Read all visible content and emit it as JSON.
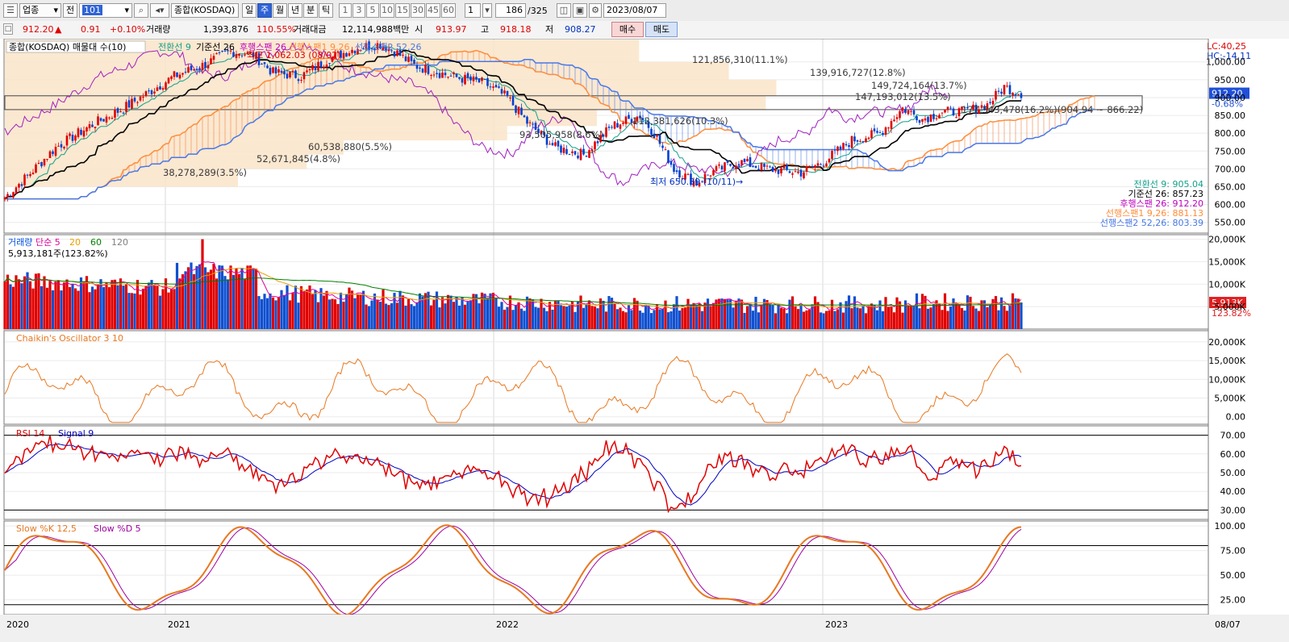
{
  "toolbar": {
    "market": "업종",
    "prev": "전",
    "code": "101",
    "name": "종합(KOSDAQ)",
    "periods": [
      "일",
      "주",
      "월",
      "년",
      "분",
      "틱"
    ],
    "selected_period": "주",
    "intervals": [
      "1",
      "3",
      "5",
      "10",
      "15",
      "30",
      "45",
      "60"
    ],
    "multiplier": "1",
    "count": "186",
    "count_total": "/325",
    "date": "2023/08/07"
  },
  "quote": {
    "price": "912.20",
    "arrow": "▲",
    "change": "0.91",
    "pct": "+0.10%",
    "vol_label": "거래량",
    "volume": "1,393,876",
    "vol_ratio": "110.55%",
    "amt_label": "거래대금",
    "amount": "12,114,988백만",
    "open_label": "시",
    "open": "913.97",
    "high_label": "고",
    "high": "918.18",
    "low_label": "저",
    "low": "908.27",
    "buy": "매수",
    "sell": "매도"
  },
  "main_panel": {
    "title": "종합(KOSDAQ) 매물대 수(10)",
    "legend": [
      {
        "label": "전환선 9",
        "color": "#13a08a"
      },
      {
        "label": "기준선 26",
        "color": "#000000"
      },
      {
        "label": "후행스팬 26",
        "color": "#c000c0"
      },
      {
        "label": "선행스팬1 9,26",
        "color": "#ff8c3a"
      },
      {
        "label": "선행스팬2 52,26",
        "color": "#4878e8"
      }
    ],
    "lc": "LC:40,25",
    "hc": "HC:-14,11",
    "price_tag": "912.20",
    "pct_tag": "-0.68%",
    "high_marker": "최고 1,062.03 (08/02)",
    "low_marker": "최저 650.39 (10/11)",
    "y_ticks": [
      "1,000.00",
      "950.00",
      "900.00",
      "850.00",
      "800.00",
      "750.00",
      "700.00",
      "650.00",
      "600.00",
      "550.00"
    ],
    "volume_profile": [
      "121,856,310(11.1%)",
      "139,916,727(12.8%)",
      "149,724,164(13.7%)",
      "147,193,012(13.5%)",
      "177,343,478(16.2%)(904.94 ~ 866.22)",
      "112,381,626(10.3%)",
      "93,505,958(8.6%)",
      "60,538,880(5.5%)",
      "52,671,845(4.8%)",
      "38,278,289(3.5%)"
    ],
    "values": [
      {
        "label": "전환선 9: 905.04",
        "color": "#13a08a"
      },
      {
        "label": "기준선 26: 857.23",
        "color": "#000000"
      },
      {
        "label": "후행스팬 26: 912.20",
        "color": "#c000c0"
      },
      {
        "label": "선행스팬1 9,26: 881.13",
        "color": "#ff8c3a"
      },
      {
        "label": "선행스팬2 52,26: 803.39",
        "color": "#4878e8"
      }
    ]
  },
  "volume_panel": {
    "legend": [
      {
        "label": "거래량",
        "color": "#0050e0"
      },
      {
        "label": "단순 5",
        "color": "#e000a0"
      },
      {
        "label": "20",
        "color": "#e8a000"
      },
      {
        "label": "60",
        "color": "#008000"
      },
      {
        "label": "120",
        "color": "#808080"
      }
    ],
    "current": "5,913,181주(123.82%)",
    "y_ticks": [
      "20,000K",
      "15,000K",
      "10,000K",
      "5,000K"
    ],
    "tag1": "5,913K",
    "tag2": "123.82%"
  },
  "chaikin_panel": {
    "title": "Chaikin's Oscillator 3 10",
    "color": "#e87820",
    "y_ticks": [
      "20,000K",
      "15,000K",
      "10,000K",
      "5,000K",
      "0.00"
    ]
  },
  "rsi_panel": {
    "legend": [
      {
        "label": "RSI 14",
        "color": "#e00000"
      },
      {
        "label": "Signal 9",
        "color": "#0000c0"
      }
    ],
    "y_ticks": [
      "70.00",
      "60.00",
      "50.00",
      "40.00",
      "30.00"
    ]
  },
  "stoch_panel": {
    "legend": [
      {
        "label": "Slow %K 12,5",
        "color": "#e87820"
      },
      {
        "label": "Slow %D 5",
        "color": "#a000a0"
      }
    ],
    "y_ticks": [
      "100.00",
      "75.00",
      "50.00",
      "25.00"
    ]
  },
  "x_axis": {
    "labels": [
      "2020",
      "2021",
      "2022",
      "2023"
    ],
    "last": "08/07"
  },
  "chart_data": [
    {
      "type": "candlestick",
      "title": "종합(KOSDAQ)",
      "ylim": [
        520,
        1065
      ],
      "x_labels": [
        "2020",
        "2021",
        "2022",
        "2023"
      ],
      "annotations": [
        "최고 1,062.03 (08/02)",
        "최저 650.39 (10/11)"
      ],
      "close_path": [
        [
          0,
          620
        ],
        [
          8,
          680
        ],
        [
          18,
          760
        ],
        [
          30,
          820
        ],
        [
          42,
          870
        ],
        [
          52,
          920
        ],
        [
          60,
          960
        ],
        [
          70,
          990
        ],
        [
          80,
          1030
        ],
        [
          88,
          1020
        ],
        [
          95,
          970
        ],
        [
          105,
          960
        ],
        [
          115,
          1010
        ],
        [
          125,
          1040
        ],
        [
          133,
          1050
        ],
        [
          138,
          1030
        ],
        [
          145,
          990
        ],
        [
          158,
          960
        ],
        [
          170,
          940
        ],
        [
          178,
          900
        ],
        [
          185,
          830
        ],
        [
          195,
          760
        ],
        [
          205,
          740
        ],
        [
          215,
          820
        ],
        [
          225,
          850
        ],
        [
          230,
          800
        ],
        [
          237,
          700
        ],
        [
          245,
          660
        ],
        [
          250,
          690
        ],
        [
          260,
          720
        ],
        [
          270,
          700
        ],
        [
          282,
          690
        ],
        [
          290,
          720
        ],
        [
          300,
          780
        ],
        [
          310,
          800
        ],
        [
          318,
          870
        ],
        [
          325,
          840
        ],
        [
          332,
          860
        ],
        [
          340,
          860
        ],
        [
          348,
          880
        ],
        [
          354,
          930
        ],
        [
          360,
          912
        ]
      ],
      "volume_profile": [
        {
          "range": "1,000 - 1,050",
          "volume": 121856310,
          "pct": 11.1
        },
        {
          "range": "950 - 1,000",
          "volume": 139916727,
          "pct": 12.8
        },
        {
          "range": "905 - 950",
          "volume": 149724164,
          "pct": 13.7
        },
        {
          "range": "866 - 905",
          "volume": 147193012,
          "pct": 13.5
        },
        {
          "range": "866.22 - 904.94",
          "volume": 177343478,
          "pct": 16.2
        },
        {
          "range": "820 - 866",
          "volume": 112381626,
          "pct": 10.3
        },
        {
          "range": "780 - 820",
          "volume": 93505958,
          "pct": 8.6
        },
        {
          "range": "740 - 780",
          "volume": 60538880,
          "pct": 5.5
        },
        {
          "range": "700 - 740",
          "volume": 52671845,
          "pct": 4.8
        },
        {
          "range": "650 - 700",
          "volume": 38278289,
          "pct": 3.5
        }
      ]
    },
    {
      "type": "bar",
      "title": "거래량",
      "ylim": [
        0,
        21000
      ],
      "unit": "K",
      "last_value": 5913
    },
    {
      "type": "line",
      "title": "Chaikin's Oscillator 3 10",
      "ylim": [
        -2000,
        23000
      ]
    },
    {
      "type": "line",
      "title": "RSI 14",
      "ylim": [
        25,
        75
      ],
      "reference_lines": [
        70,
        30
      ]
    },
    {
      "type": "line",
      "title": "Slow %K 12,5",
      "ylim": [
        10,
        105
      ],
      "reference_lines": [
        80,
        20
      ]
    }
  ]
}
